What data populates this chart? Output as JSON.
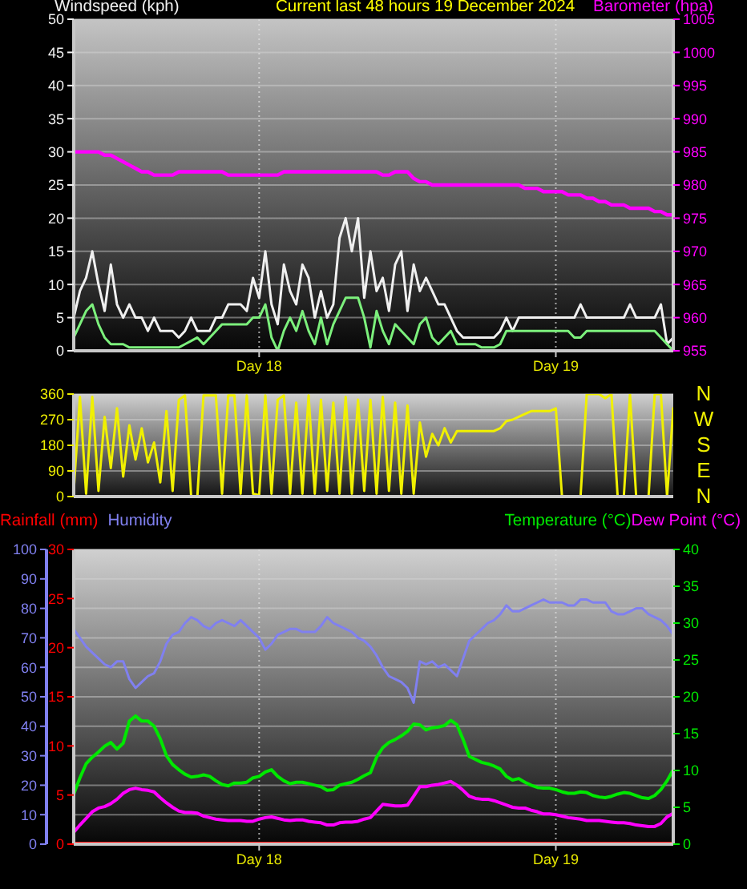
{
  "chart_data": [
    {
      "type": "line",
      "title": "Current last 48 hours 19 December 2024",
      "ylabel": "Windspeed (kph)",
      "y2label": "Barometer (hpa)",
      "categories": [
        null,
        null,
        null,
        null,
        null,
        null,
        null,
        null,
        null,
        null,
        null,
        null,
        null,
        null,
        null,
        null,
        null,
        null,
        null,
        null,
        null,
        null,
        null,
        null,
        null,
        null,
        null,
        null,
        null,
        null,
        "Day 18",
        null,
        null,
        null,
        null,
        null,
        null,
        null,
        null,
        null,
        null,
        null,
        null,
        null,
        null,
        null,
        null,
        null,
        null,
        null,
        null,
        null,
        null,
        null,
        null,
        null,
        null,
        null,
        null,
        null,
        null,
        null,
        null,
        null,
        null,
        null,
        null,
        null,
        null,
        null,
        null,
        null,
        null,
        null,
        null,
        null,
        null,
        null,
        "Day 19",
        null,
        null,
        null,
        null,
        null,
        null,
        null,
        null,
        null,
        null,
        null,
        null,
        null,
        null,
        null,
        null,
        null,
        null,
        null
      ],
      "ylim": [
        0,
        50
      ],
      "yticks": [
        0,
        5,
        10,
        15,
        20,
        25,
        30,
        35,
        40,
        45,
        50
      ],
      "y2lim": [
        955,
        1005
      ],
      "y2ticks": [
        955,
        960,
        965,
        970,
        975,
        980,
        985,
        990,
        995,
        1000,
        1005
      ],
      "grid": true,
      "series": [
        {
          "color": "#f0f0f0",
          "values": [
            5,
            9,
            11,
            15,
            10,
            6,
            13,
            7,
            5,
            7,
            5,
            5,
            3,
            5,
            3,
            3,
            3,
            2,
            3,
            5,
            3,
            3,
            3,
            5,
            5,
            7,
            7,
            7,
            6,
            11,
            8,
            15,
            7,
            4,
            13,
            9,
            7,
            13,
            11,
            5,
            9,
            5,
            7,
            17,
            20,
            15,
            20,
            8,
            15,
            9,
            11,
            6,
            13,
            15,
            6,
            13,
            9,
            11,
            9,
            7,
            7,
            5,
            3,
            2,
            2,
            2,
            2,
            2,
            2,
            3,
            5,
            3,
            5,
            5,
            5,
            5,
            5,
            5,
            5,
            5,
            5,
            5,
            7,
            5,
            5,
            5,
            5,
            5,
            5,
            5,
            7,
            5,
            5,
            5,
            5,
            7,
            1,
            2
          ]
        },
        {
          "color": "#7cf07c",
          "values": [
            2,
            4,
            6,
            7,
            4,
            2,
            1,
            1,
            1,
            0.5,
            0.5,
            0.5,
            0.5,
            0.5,
            0.5,
            0.5,
            0.5,
            0.5,
            1,
            1.5,
            2,
            1,
            2,
            3,
            4,
            4,
            4,
            4,
            4,
            5,
            5,
            7,
            2,
            0,
            3,
            5,
            3,
            6,
            3,
            1,
            5,
            1,
            4,
            6,
            8,
            8,
            8,
            5,
            0.5,
            6,
            3,
            1,
            4,
            3,
            2,
            1,
            4,
            5,
            2,
            1,
            2,
            3,
            1,
            1,
            1,
            1,
            0.5,
            0.5,
            0.5,
            1,
            3,
            3,
            3,
            3,
            3,
            3,
            3,
            3,
            3,
            3,
            3,
            2,
            2,
            3,
            3,
            3,
            3,
            3,
            3,
            3,
            3,
            3,
            3,
            3,
            3,
            2,
            1,
            0
          ]
        },
        {
          "color": "#ff00ff",
          "axis": "y2",
          "values": [
            985,
            985,
            985,
            985,
            985,
            984.5,
            984.5,
            984,
            983.5,
            983,
            982.5,
            982,
            982,
            981.5,
            981.5,
            981.5,
            981.5,
            982,
            982,
            982,
            982,
            982,
            982,
            982,
            982,
            981.5,
            981.5,
            981.5,
            981.5,
            981.5,
            981.5,
            981.5,
            981.5,
            981.5,
            982,
            982,
            982,
            982,
            982,
            982,
            982,
            982,
            982,
            982,
            982,
            982,
            982,
            982,
            982,
            982,
            981.5,
            981.5,
            982,
            982,
            982,
            981,
            980.5,
            980.5,
            980,
            980,
            980,
            980,
            980,
            980,
            980,
            980,
            980,
            980,
            980,
            980,
            980,
            980,
            980,
            979.5,
            979.5,
            979.5,
            979,
            979,
            979,
            979,
            978.5,
            978.5,
            978.5,
            978,
            978,
            977.5,
            977.5,
            977,
            977,
            977,
            976.5,
            976.5,
            976.5,
            976.5,
            976,
            976,
            975.5,
            975.5
          ]
        }
      ]
    },
    {
      "type": "line",
      "categories": [
        null,
        null,
        null,
        null,
        null,
        null,
        null,
        null,
        null,
        null,
        null,
        null,
        null,
        null,
        null,
        null,
        null,
        null,
        null,
        null,
        null,
        null,
        null,
        null,
        null,
        null,
        null,
        null,
        null,
        null,
        null,
        null,
        null,
        null,
        null,
        null,
        null,
        null,
        null,
        null,
        null,
        null,
        null,
        null,
        null,
        null,
        null,
        null,
        null,
        null,
        null,
        null,
        null,
        null,
        null,
        null,
        null,
        null,
        null,
        null,
        null,
        null,
        null,
        null,
        null,
        null,
        null,
        null,
        null,
        null,
        null,
        null,
        null,
        null,
        null,
        null,
        null,
        null,
        null,
        null,
        null,
        null,
        null,
        null,
        null,
        null,
        null,
        null,
        null,
        null,
        null,
        null,
        null,
        null,
        null,
        null,
        null,
        null
      ],
      "ylim": [
        0,
        360
      ],
      "yticks": [
        0,
        90,
        180,
        270,
        360
      ],
      "grid": "y",
      "annotations": [
        "N",
        "W",
        "S",
        "E",
        "N"
      ],
      "series": [
        {
          "color": "#f0f000",
          "values": [
            20,
            350,
            10,
            350,
            20,
            280,
            100,
            310,
            70,
            250,
            130,
            240,
            120,
            190,
            50,
            300,
            20,
            340,
            355,
            0,
            0,
            355,
            355,
            355,
            10,
            355,
            355,
            10,
            355,
            10,
            5,
            355,
            10,
            340,
            355,
            10,
            330,
            10,
            355,
            10,
            340,
            20,
            330,
            10,
            350,
            10,
            340,
            20,
            340,
            10,
            350,
            20,
            330,
            10,
            320,
            10,
            260,
            140,
            220,
            180,
            240,
            190,
            230,
            230,
            230,
            230,
            230,
            230,
            230,
            240,
            265,
            270,
            280,
            290,
            300,
            300,
            300,
            300,
            310,
            0,
            0,
            0,
            0,
            360,
            360,
            360,
            345,
            360,
            0,
            0,
            360,
            0,
            0,
            0,
            360,
            360,
            0,
            310
          ]
        }
      ]
    },
    {
      "type": "line",
      "categories": [
        null,
        null,
        null,
        null,
        null,
        null,
        null,
        null,
        null,
        null,
        null,
        null,
        null,
        null,
        null,
        null,
        null,
        null,
        null,
        null,
        null,
        null,
        null,
        null,
        null,
        null,
        null,
        null,
        null,
        null,
        "Day 18",
        null,
        null,
        null,
        null,
        null,
        null,
        null,
        null,
        null,
        null,
        null,
        null,
        null,
        null,
        null,
        null,
        null,
        null,
        null,
        null,
        null,
        null,
        null,
        null,
        null,
        null,
        null,
        null,
        null,
        null,
        null,
        null,
        null,
        null,
        null,
        null,
        null,
        null,
        null,
        null,
        null,
        null,
        null,
        null,
        null,
        null,
        null,
        "Day 19",
        null,
        null,
        null,
        null,
        null,
        null,
        null,
        null,
        null,
        null,
        null,
        null,
        null,
        null,
        null,
        null,
        null,
        null,
        null
      ],
      "ylim": [
        0,
        30
      ],
      "yticks": [
        0,
        5,
        10,
        15,
        20,
        25,
        30
      ],
      "y3lim": [
        0,
        100
      ],
      "y3ticks": [
        0,
        10,
        20,
        30,
        40,
        50,
        60,
        70,
        80,
        90,
        100
      ],
      "y2lim": [
        0,
        40
      ],
      "y2ticks": [
        0,
        5,
        10,
        15,
        20,
        25,
        30,
        35,
        40
      ],
      "grid": true,
      "legend": "top",
      "series": [
        {
          "name": "Rainfall (mm)",
          "color": "#ff0000",
          "values": [
            0,
            0,
            0,
            0,
            0,
            0,
            0,
            0,
            0,
            0,
            0,
            0,
            0,
            0,
            0,
            0,
            0,
            0,
            0,
            0,
            0,
            0,
            0,
            0,
            0,
            0,
            0,
            0,
            0,
            0,
            0,
            0,
            0,
            0,
            0,
            0,
            0,
            0,
            0,
            0,
            0,
            0,
            0,
            0,
            0,
            0,
            0,
            0,
            0,
            0,
            0,
            0,
            0,
            0,
            0,
            0,
            0,
            0,
            0,
            0,
            0,
            0,
            0,
            0,
            0,
            0,
            0,
            0,
            0,
            0,
            0,
            0,
            0,
            0,
            0,
            0,
            0,
            0,
            0,
            0,
            0,
            0,
            0,
            0,
            0,
            0,
            0,
            0,
            0,
            0,
            0,
            0,
            0,
            0,
            0,
            0,
            0,
            0
          ]
        },
        {
          "name": "Humidity",
          "color": "#8080f0",
          "axis": "y3",
          "values": [
            73,
            70,
            67,
            65,
            63,
            61,
            60,
            62,
            62,
            56,
            53,
            55,
            57,
            58,
            62,
            68,
            71,
            72,
            75,
            77,
            76,
            74,
            73,
            75,
            76,
            75,
            74,
            76,
            74,
            72,
            70,
            66,
            68,
            71,
            72,
            73,
            73,
            72,
            72,
            72,
            74,
            77,
            75,
            74,
            73,
            72,
            70,
            69,
            67,
            64,
            60,
            57,
            56,
            55,
            53,
            48,
            62,
            61,
            62,
            60,
            61,
            59,
            57,
            63,
            69,
            71,
            73,
            75,
            76,
            78,
            81,
            79,
            79,
            80,
            81,
            82,
            83,
            82,
            82,
            82,
            81,
            81,
            83,
            83,
            82,
            82,
            82,
            79,
            78,
            78,
            79,
            80,
            80,
            78,
            77,
            76,
            74,
            71
          ]
        },
        {
          "name": "Temperature (°C)",
          "color": "#00e800",
          "axis": "y2",
          "values": [
            6.8,
            9,
            10.9,
            11.8,
            12.5,
            13.3,
            13.8,
            12.9,
            13.7,
            16.7,
            17.4,
            16.7,
            16.7,
            16,
            14.3,
            12,
            10.8,
            10.1,
            9.5,
            9.1,
            9.2,
            9.4,
            9.2,
            8.6,
            8.1,
            7.9,
            8.3,
            8.3,
            8.4,
            9,
            9.2,
            9.8,
            10.1,
            9.2,
            8.6,
            8.2,
            8.4,
            8.4,
            8.2,
            8,
            7.8,
            7.3,
            7.4,
            8,
            8.2,
            8.4,
            8.8,
            9.3,
            9.7,
            11.8,
            13.1,
            13.8,
            14.2,
            14.7,
            15.3,
            16.3,
            16.2,
            15.5,
            15.8,
            15.9,
            16.1,
            16.8,
            16.2,
            14.2,
            11.9,
            11.5,
            11.1,
            10.9,
            10.6,
            10.2,
            9.2,
            8.7,
            8.9,
            8.4,
            8,
            7.7,
            7.6,
            7.6,
            7.4,
            7.1,
            6.9,
            6.9,
            7.1,
            7,
            6.6,
            6.4,
            6.3,
            6.5,
            6.8,
            7,
            6.9,
            6.6,
            6.3,
            6.2,
            6.6,
            7.4,
            8.6,
            10.1
          ]
        },
        {
          "name": "Dew Point (°C)",
          "color": "#ff00ff",
          "axis": "y2",
          "values": [
            1.6,
            2.6,
            3.5,
            4.4,
            4.9,
            5.1,
            5.5,
            6.1,
            6.9,
            7.4,
            7.6,
            7.4,
            7.3,
            7.1,
            6.3,
            5.6,
            5,
            4.5,
            4.3,
            4.3,
            4.2,
            3.8,
            3.6,
            3.4,
            3.3,
            3.2,
            3.2,
            3.2,
            3.1,
            3.1,
            3.4,
            3.6,
            3.7,
            3.5,
            3.3,
            3.2,
            3.3,
            3.3,
            3.1,
            3,
            2.9,
            2.6,
            2.6,
            2.9,
            3,
            3,
            3.1,
            3.4,
            3.6,
            4.5,
            5.4,
            5.3,
            5.2,
            5.2,
            5.3,
            6.5,
            7.8,
            7.8,
            8,
            8.1,
            8.3,
            8.5,
            8,
            7.3,
            6.5,
            6.2,
            6.1,
            6.1,
            5.9,
            5.6,
            5.3,
            5,
            4.9,
            4.9,
            4.6,
            4.4,
            4.1,
            4.1,
            4,
            3.8,
            3.6,
            3.5,
            3.4,
            3.2,
            3.2,
            3.2,
            3.1,
            3,
            2.9,
            2.9,
            2.8,
            2.6,
            2.5,
            2.4,
            2.4,
            2.8,
            3.7,
            4.2
          ]
        }
      ]
    }
  ]
}
